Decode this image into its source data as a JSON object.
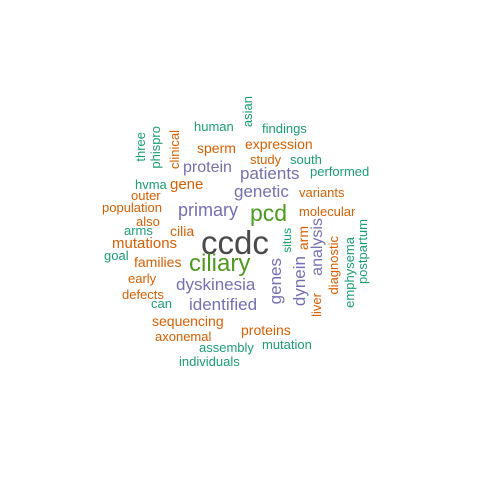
{
  "colors": {
    "green": "#1b9e77",
    "orange": "#d95f02",
    "purple": "#7570b3",
    "olive": "#4d9a21",
    "dark": "#4a4a4a"
  },
  "words": [
    {
      "text": "ccdc",
      "color": "dark"
    },
    {
      "text": "ciliary",
      "color": "olive"
    },
    {
      "text": "pcd",
      "color": "olive"
    },
    {
      "text": "primary",
      "color": "purple"
    },
    {
      "text": "genetic",
      "color": "purple"
    },
    {
      "text": "patients",
      "color": "purple"
    },
    {
      "text": "dyskinesia",
      "color": "purple"
    },
    {
      "text": "identified",
      "color": "purple"
    },
    {
      "text": "genes",
      "color": "purple"
    },
    {
      "text": "dynein",
      "color": "purple"
    },
    {
      "text": "analysis",
      "color": "purple"
    },
    {
      "text": "protein",
      "color": "purple"
    },
    {
      "text": "gene",
      "color": "orange"
    },
    {
      "text": "mutations",
      "color": "orange"
    },
    {
      "text": "families",
      "color": "orange"
    },
    {
      "text": "sequencing",
      "color": "orange"
    },
    {
      "text": "proteins",
      "color": "orange"
    },
    {
      "text": "axonemal",
      "color": "orange"
    },
    {
      "text": "molecular",
      "color": "orange"
    },
    {
      "text": "variants",
      "color": "orange"
    },
    {
      "text": "expression",
      "color": "orange"
    },
    {
      "text": "sperm",
      "color": "orange"
    },
    {
      "text": "study",
      "color": "orange"
    },
    {
      "text": "population",
      "color": "orange"
    },
    {
      "text": "cilia",
      "color": "orange"
    },
    {
      "text": "also",
      "color": "orange"
    },
    {
      "text": "early",
      "color": "orange"
    },
    {
      "text": "defects",
      "color": "orange"
    },
    {
      "text": "clinical",
      "color": "orange"
    },
    {
      "text": "arm",
      "color": "orange"
    },
    {
      "text": "liver",
      "color": "orange"
    },
    {
      "text": "diagnostic",
      "color": "orange"
    },
    {
      "text": "human",
      "color": "green"
    },
    {
      "text": "asian",
      "color": "green"
    },
    {
      "text": "findings",
      "color": "green"
    },
    {
      "text": "three",
      "color": "green"
    },
    {
      "text": "phispro",
      "color": "green"
    },
    {
      "text": "south",
      "color": "green"
    },
    {
      "text": "performed",
      "color": "green"
    },
    {
      "text": "hvma",
      "color": "green"
    },
    {
      "text": "outer",
      "color": "orange"
    },
    {
      "text": "arms",
      "color": "green"
    },
    {
      "text": "goal",
      "color": "green"
    },
    {
      "text": "can",
      "color": "green"
    },
    {
      "text": "situs",
      "color": "green"
    },
    {
      "text": "emphysema",
      "color": "green"
    },
    {
      "text": "postpartum",
      "color": "green"
    },
    {
      "text": "assembly",
      "color": "green"
    },
    {
      "text": "mutation",
      "color": "green"
    },
    {
      "text": "individuals",
      "color": "green"
    }
  ]
}
